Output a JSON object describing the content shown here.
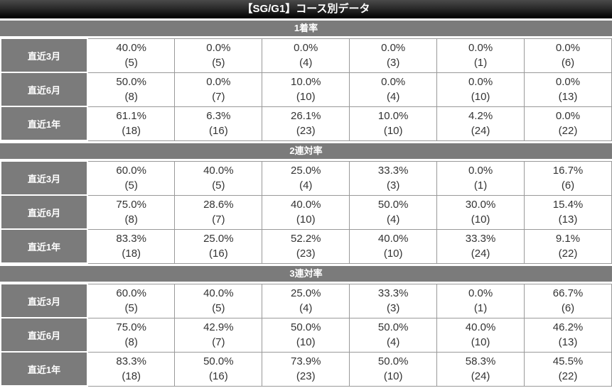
{
  "title": "【SG/G1】コース別データ",
  "colors": {
    "highlight_pink": "#F8CBF6",
    "highlight_yellow": "#FAFAC6",
    "header_gray": "#7B7B7B",
    "title_gradient_top": "#4A4A4A",
    "title_gradient_bottom": "#000000",
    "cell_border": "#999999",
    "text_dark": "#333333"
  },
  "sections": [
    {
      "label": "1着率",
      "rows": [
        {
          "label": "直近3月",
          "cells": [
            {
              "pct": "40.0%",
              "n": "(5)",
              "hl": "pink"
            },
            {
              "pct": "0.0%",
              "n": "(5)",
              "hl": ""
            },
            {
              "pct": "0.0%",
              "n": "(4)",
              "hl": ""
            },
            {
              "pct": "0.0%",
              "n": "(3)",
              "hl": ""
            },
            {
              "pct": "0.0%",
              "n": "(1)",
              "hl": ""
            },
            {
              "pct": "0.0%",
              "n": "(6)",
              "hl": ""
            }
          ]
        },
        {
          "label": "直近6月",
          "cells": [
            {
              "pct": "50.0%",
              "n": "(8)",
              "hl": "pink"
            },
            {
              "pct": "0.0%",
              "n": "(7)",
              "hl": ""
            },
            {
              "pct": "10.0%",
              "n": "(10)",
              "hl": "yellow"
            },
            {
              "pct": "0.0%",
              "n": "(4)",
              "hl": ""
            },
            {
              "pct": "0.0%",
              "n": "(10)",
              "hl": ""
            },
            {
              "pct": "0.0%",
              "n": "(13)",
              "hl": ""
            }
          ]
        },
        {
          "label": "直近1年",
          "cells": [
            {
              "pct": "61.1%",
              "n": "(18)",
              "hl": "pink"
            },
            {
              "pct": "6.3%",
              "n": "(16)",
              "hl": ""
            },
            {
              "pct": "26.1%",
              "n": "(23)",
              "hl": "yellow"
            },
            {
              "pct": "10.0%",
              "n": "(10)",
              "hl": ""
            },
            {
              "pct": "4.2%",
              "n": "(24)",
              "hl": ""
            },
            {
              "pct": "0.0%",
              "n": "(22)",
              "hl": ""
            }
          ]
        }
      ]
    },
    {
      "label": "2連対率",
      "rows": [
        {
          "label": "直近3月",
          "cells": [
            {
              "pct": "60.0%",
              "n": "(5)",
              "hl": "pink"
            },
            {
              "pct": "40.0%",
              "n": "(5)",
              "hl": "yellow"
            },
            {
              "pct": "25.0%",
              "n": "(4)",
              "hl": ""
            },
            {
              "pct": "33.3%",
              "n": "(3)",
              "hl": ""
            },
            {
              "pct": "0.0%",
              "n": "(1)",
              "hl": ""
            },
            {
              "pct": "16.7%",
              "n": "(6)",
              "hl": ""
            }
          ]
        },
        {
          "label": "直近6月",
          "cells": [
            {
              "pct": "75.0%",
              "n": "(8)",
              "hl": "pink"
            },
            {
              "pct": "28.6%",
              "n": "(7)",
              "hl": ""
            },
            {
              "pct": "40.0%",
              "n": "(10)",
              "hl": ""
            },
            {
              "pct": "50.0%",
              "n": "(4)",
              "hl": "yellow"
            },
            {
              "pct": "30.0%",
              "n": "(10)",
              "hl": ""
            },
            {
              "pct": "15.4%",
              "n": "(13)",
              "hl": ""
            }
          ]
        },
        {
          "label": "直近1年",
          "cells": [
            {
              "pct": "83.3%",
              "n": "(18)",
              "hl": "pink"
            },
            {
              "pct": "25.0%",
              "n": "(16)",
              "hl": ""
            },
            {
              "pct": "52.2%",
              "n": "(23)",
              "hl": "yellow"
            },
            {
              "pct": "40.0%",
              "n": "(10)",
              "hl": ""
            },
            {
              "pct": "33.3%",
              "n": "(24)",
              "hl": ""
            },
            {
              "pct": "9.1%",
              "n": "(22)",
              "hl": ""
            }
          ]
        }
      ]
    },
    {
      "label": "3連対率",
      "rows": [
        {
          "label": "直近3月",
          "cells": [
            {
              "pct": "60.0%",
              "n": "(5)",
              "hl": "yellow"
            },
            {
              "pct": "40.0%",
              "n": "(5)",
              "hl": ""
            },
            {
              "pct": "25.0%",
              "n": "(4)",
              "hl": ""
            },
            {
              "pct": "33.3%",
              "n": "(3)",
              "hl": ""
            },
            {
              "pct": "0.0%",
              "n": "(1)",
              "hl": ""
            },
            {
              "pct": "66.7%",
              "n": "(6)",
              "hl": "pink"
            }
          ]
        },
        {
          "label": "直近6月",
          "cells": [
            {
              "pct": "75.0%",
              "n": "(8)",
              "hl": "pink"
            },
            {
              "pct": "42.9%",
              "n": "(7)",
              "hl": ""
            },
            {
              "pct": "50.0%",
              "n": "(10)",
              "hl": "yellow"
            },
            {
              "pct": "50.0%",
              "n": "(4)",
              "hl": "yellow"
            },
            {
              "pct": "40.0%",
              "n": "(10)",
              "hl": ""
            },
            {
              "pct": "46.2%",
              "n": "(13)",
              "hl": ""
            }
          ]
        },
        {
          "label": "直近1年",
          "cells": [
            {
              "pct": "83.3%",
              "n": "(18)",
              "hl": "pink"
            },
            {
              "pct": "50.0%",
              "n": "(16)",
              "hl": ""
            },
            {
              "pct": "73.9%",
              "n": "(23)",
              "hl": "yellow"
            },
            {
              "pct": "50.0%",
              "n": "(10)",
              "hl": ""
            },
            {
              "pct": "58.3%",
              "n": "(24)",
              "hl": ""
            },
            {
              "pct": "45.5%",
              "n": "(22)",
              "hl": ""
            }
          ]
        }
      ]
    }
  ]
}
